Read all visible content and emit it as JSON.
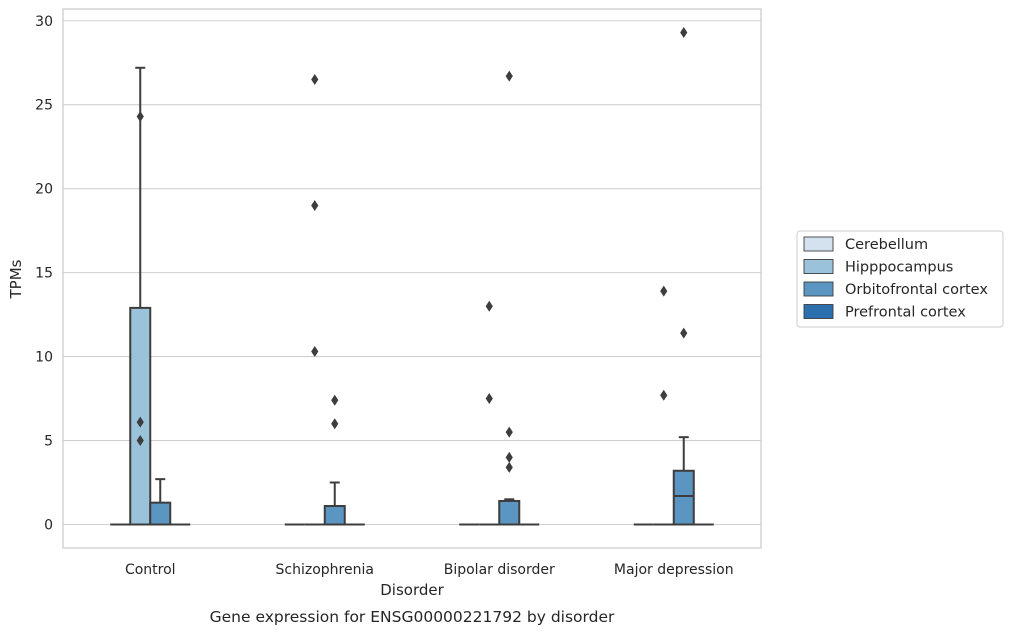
{
  "chart_data": {
    "type": "box",
    "title": "",
    "caption": "Gene expression for ENSG00000221792 by disorder",
    "xlabel": "Disorder",
    "ylabel": "TPMs",
    "ylim": [
      -1.4,
      30.7
    ],
    "yticks": [
      0,
      5,
      10,
      15,
      20,
      25,
      30
    ],
    "grid": "horizontal",
    "legend_position": "right",
    "categories": [
      "Control",
      "Schizophrenia",
      "Bipolar disorder",
      "Major depression"
    ],
    "series": [
      {
        "name": "Cerebellum",
        "color": "#d4e2f0",
        "boxes": [
          {
            "q1": 0,
            "median": 0,
            "q3": 0,
            "whisker_low": 0,
            "whisker_high": 0,
            "outliers": []
          },
          {
            "q1": 0,
            "median": 0,
            "q3": 0,
            "whisker_low": 0,
            "whisker_high": 0,
            "outliers": []
          },
          {
            "q1": 0,
            "median": 0,
            "q3": 0,
            "whisker_low": 0,
            "whisker_high": 0,
            "outliers": []
          },
          {
            "q1": 0,
            "median": 0,
            "q3": 0,
            "whisker_low": 0,
            "whisker_high": 0,
            "outliers": []
          }
        ]
      },
      {
        "name": "Hipppocampus",
        "color": "#9bc2db",
        "boxes": [
          {
            "q1": 0,
            "median": 0,
            "q3": 12.9,
            "whisker_low": 0,
            "whisker_high": 27.2,
            "outliers": [
              24.3,
              6.1,
              5.0
            ]
          },
          {
            "q1": 0,
            "median": 0,
            "q3": 0,
            "whisker_low": 0,
            "whisker_high": 0,
            "outliers": [
              26.5,
              19.0,
              10.3
            ]
          },
          {
            "q1": 0,
            "median": 0,
            "q3": 0,
            "whisker_low": 0,
            "whisker_high": 0,
            "outliers": [
              13.0,
              7.5
            ]
          },
          {
            "q1": 0,
            "median": 0,
            "q3": 0,
            "whisker_low": 0,
            "whisker_high": 0,
            "outliers": [
              13.9,
              7.7
            ]
          }
        ]
      },
      {
        "name": "Orbitofrontal cortex",
        "color": "#5b95c2",
        "boxes": [
          {
            "q1": 0,
            "median": 0,
            "q3": 1.3,
            "whisker_low": 0,
            "whisker_high": 2.7,
            "outliers": []
          },
          {
            "q1": 0,
            "median": 0,
            "q3": 1.1,
            "whisker_low": 0,
            "whisker_high": 2.5,
            "outliers": [
              7.4,
              6.0
            ]
          },
          {
            "q1": 0,
            "median": 0,
            "q3": 1.4,
            "whisker_low": 0,
            "whisker_high": 1.5,
            "outliers": [
              26.7,
              5.5,
              4.0,
              3.4
            ]
          },
          {
            "q1": 0,
            "median": 1.7,
            "q3": 3.2,
            "whisker_low": 0,
            "whisker_high": 5.2,
            "outliers": [
              29.3,
              11.4
            ]
          }
        ]
      },
      {
        "name": "Prefrontal cortex",
        "color": "#2c6fad",
        "boxes": [
          {
            "q1": 0,
            "median": 0,
            "q3": 0,
            "whisker_low": 0,
            "whisker_high": 0,
            "outliers": []
          },
          {
            "q1": 0,
            "median": 0,
            "q3": 0,
            "whisker_low": 0,
            "whisker_high": 0,
            "outliers": []
          },
          {
            "q1": 0,
            "median": 0,
            "q3": 0,
            "whisker_low": 0,
            "whisker_high": 0,
            "outliers": []
          },
          {
            "q1": 0,
            "median": 0,
            "q3": 0,
            "whisker_low": 0,
            "whisker_high": 0,
            "outliers": []
          }
        ]
      }
    ]
  }
}
